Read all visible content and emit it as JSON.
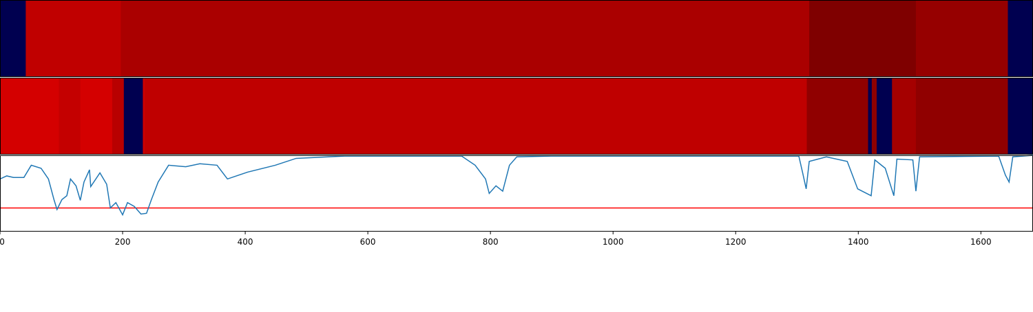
{
  "chart_data": [
    {
      "type": "heatmap",
      "xlim": [
        0,
        1685
      ],
      "edges": [
        0,
        42,
        197,
        1320,
        1494,
        1644,
        1685
      ],
      "colors": [
        "#000050",
        "#c00000",
        "#aa0000",
        "#7f0000",
        "#960000",
        "#000050"
      ]
    },
    {
      "type": "heatmap",
      "xlim": [
        0,
        1685
      ],
      "edges": [
        0,
        96,
        131,
        183,
        202,
        233,
        236,
        1316,
        1416,
        1422,
        1430,
        1455,
        1494,
        1644,
        1685
      ],
      "colors": [
        "#d40000",
        "#c40000",
        "#d40000",
        "#b80000",
        "#000050",
        "#cc0000",
        "#bf0000",
        "#900000",
        "#000050",
        "#900000",
        "#000050",
        "#a50000",
        "#900000",
        "#000050"
      ]
    },
    {
      "type": "line",
      "xlim": [
        0,
        1685
      ],
      "ylim": [
        0,
        1
      ],
      "xticks": [
        0,
        200,
        400,
        600,
        800,
        1000,
        1200,
        1400,
        1600
      ],
      "color": "#1f77b4",
      "hline": {
        "value": 0.31,
        "color": "#ff0000"
      },
      "x": [
        0,
        11,
        22,
        39,
        51,
        67,
        79,
        88,
        93,
        101,
        109,
        115,
        124,
        131,
        137,
        146,
        148,
        163,
        174,
        180,
        189,
        200,
        208,
        219,
        230,
        239,
        247,
        258,
        275,
        303,
        326,
        354,
        371,
        404,
        449,
        483,
        562,
        753,
        775,
        792,
        798,
        809,
        820,
        831,
        843,
        899,
        1303,
        1309,
        1315,
        1320,
        1348,
        1382,
        1399,
        1421,
        1427,
        1444,
        1458,
        1463,
        1489,
        1494,
        1500,
        1629,
        1640,
        1646,
        1652,
        1685
      ],
      "values": [
        0.69,
        0.73,
        0.71,
        0.71,
        0.87,
        0.83,
        0.69,
        0.42,
        0.29,
        0.42,
        0.47,
        0.69,
        0.6,
        0.41,
        0.65,
        0.81,
        0.59,
        0.77,
        0.62,
        0.31,
        0.38,
        0.22,
        0.38,
        0.33,
        0.23,
        0.24,
        0.42,
        0.65,
        0.87,
        0.85,
        0.89,
        0.87,
        0.69,
        0.78,
        0.87,
        0.96,
        0.99,
        0.99,
        0.87,
        0.69,
        0.5,
        0.6,
        0.53,
        0.87,
        0.98,
        0.99,
        0.99,
        0.78,
        0.56,
        0.92,
        0.98,
        0.92,
        0.56,
        0.47,
        0.94,
        0.83,
        0.47,
        0.95,
        0.94,
        0.53,
        0.98,
        0.99,
        0.74,
        0.65,
        0.98,
        1.0
      ]
    }
  ]
}
